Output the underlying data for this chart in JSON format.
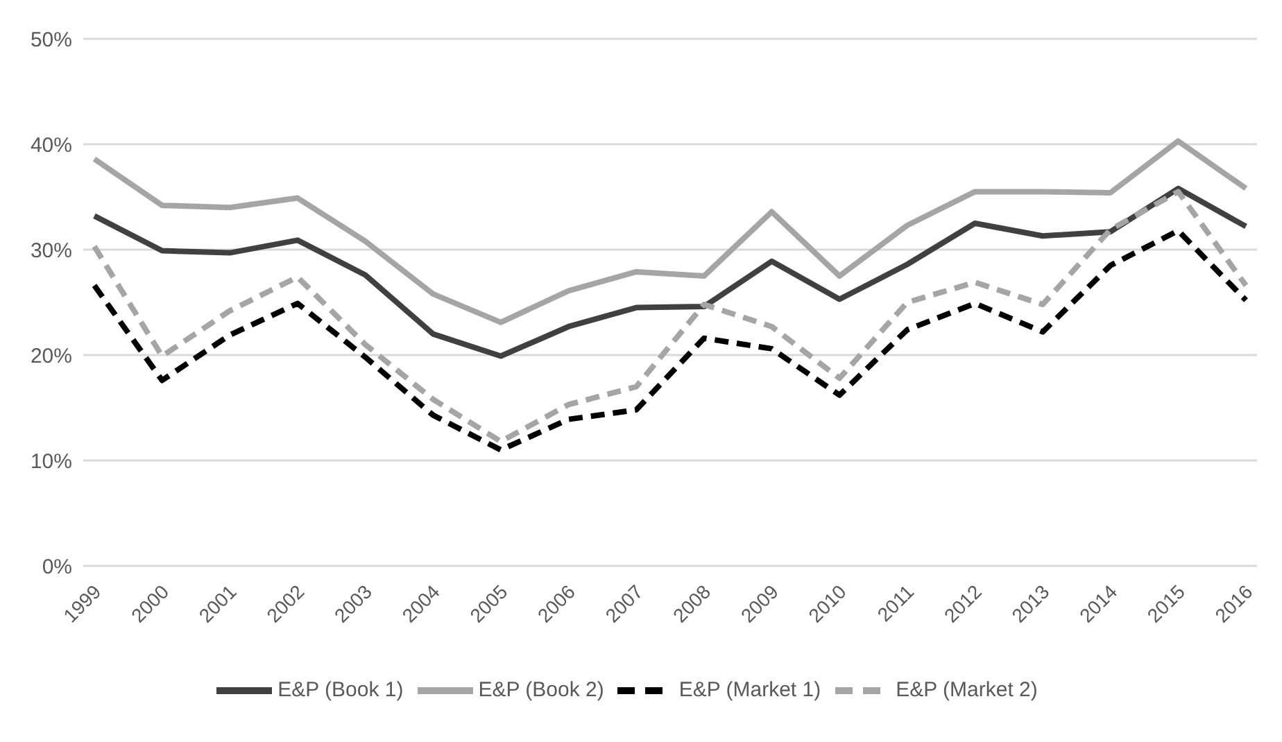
{
  "chart_data": {
    "type": "line",
    "categories": [
      "1999",
      "2000",
      "2001",
      "2002",
      "2003",
      "2004",
      "2005",
      "2006",
      "2007",
      "2008",
      "2009",
      "2010",
      "2011",
      "2012",
      "2013",
      "2014",
      "2015",
      "2016"
    ],
    "series": [
      {
        "name": "E&P (Book 1)",
        "color": "#404040",
        "line_style": "solid",
        "values": [
          33.2,
          29.9,
          29.7,
          30.9,
          27.6,
          22.0,
          19.9,
          22.7,
          24.5,
          24.6,
          28.9,
          25.3,
          28.6,
          32.5,
          31.3,
          31.7,
          35.8,
          32.2
        ]
      },
      {
        "name": "E&P (Book 2)",
        "color": "#a5a5a5",
        "line_style": "solid",
        "values": [
          38.6,
          34.2,
          34.0,
          34.9,
          30.8,
          25.8,
          23.1,
          26.1,
          27.9,
          27.5,
          33.6,
          27.5,
          32.3,
          35.5,
          35.5,
          35.4,
          40.3,
          35.8
        ]
      },
      {
        "name": "E&P (Market 1)",
        "color": "#000000",
        "line_style": "dashed",
        "values": [
          26.6,
          17.6,
          21.9,
          24.9,
          19.8,
          14.3,
          11.0,
          13.9,
          14.8,
          21.6,
          20.6,
          16.2,
          22.4,
          24.9,
          22.2,
          28.5,
          31.8,
          25.2
        ]
      },
      {
        "name": "E&P (Market 2)",
        "color": "#a5a5a5",
        "line_style": "dashed",
        "values": [
          30.3,
          19.9,
          24.2,
          27.4,
          21.0,
          15.8,
          11.8,
          15.3,
          17.0,
          24.8,
          22.7,
          17.8,
          25.0,
          26.9,
          24.8,
          31.9,
          35.5,
          26.6
        ]
      }
    ],
    "ylim": [
      0,
      50
    ],
    "yticks": [
      {
        "value": 0,
        "label": "0%"
      },
      {
        "value": 10,
        "label": "10%"
      },
      {
        "value": 20,
        "label": "20%"
      },
      {
        "value": 30,
        "label": "30%"
      },
      {
        "value": 40,
        "label": "40%"
      },
      {
        "value": 50,
        "label": "50%"
      }
    ],
    "grid": "y",
    "legend": "bottom",
    "marker": "none"
  }
}
